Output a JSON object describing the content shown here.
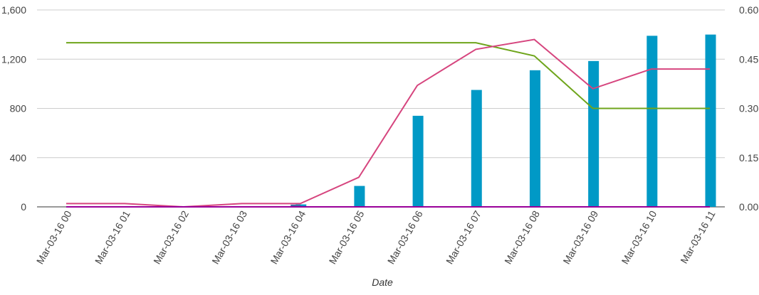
{
  "chart_data": {
    "type": "bar",
    "xlabel": "Date",
    "categories": [
      "Mar-03-16 00",
      "Mar-03-16 01",
      "Mar-03-16 02",
      "Mar-03-16 03",
      "Mar-03-16 04",
      "Mar-03-16 05",
      "Mar-03-16 06",
      "Mar-03-16 07",
      "Mar-03-16 08",
      "Mar-03-16 09",
      "Mar-03-16 10",
      "Mar-03-16 11"
    ],
    "y_left": {
      "ylim": [
        0,
        1600
      ],
      "ticks": [
        "0",
        "400",
        "800",
        "1,200",
        "1,600"
      ],
      "tick_values": [
        0,
        400,
        800,
        1200,
        1600
      ]
    },
    "y_right": {
      "ylim": [
        0,
        0.6
      ],
      "ticks": [
        "0.00",
        "0.15",
        "0.30",
        "0.45",
        "0.60"
      ],
      "tick_values": [
        0,
        0.15,
        0.3,
        0.45,
        0.6
      ]
    },
    "grid": true,
    "series": [
      {
        "type": "bar",
        "axis": "left",
        "color": "#0099c6",
        "values": [
          0,
          0,
          0,
          0,
          20,
          170,
          740,
          950,
          1110,
          1185,
          1390,
          1400
        ]
      },
      {
        "type": "bar",
        "axis": "left",
        "color": "#3b6ea5",
        "values": [
          0,
          0,
          0,
          0,
          18,
          0,
          0,
          0,
          0,
          0,
          0,
          0
        ]
      },
      {
        "type": "line",
        "axis": "right",
        "color": "#6fa51c",
        "values": [
          0.5,
          0.5,
          0.5,
          0.5,
          0.5,
          0.5,
          0.5,
          0.5,
          0.46,
          0.3,
          0.3,
          0.3
        ]
      },
      {
        "type": "line",
        "axis": "right",
        "color": "#d6457e",
        "values": [
          0.01,
          0.01,
          0.0,
          0.01,
          0.01,
          0.09,
          0.37,
          0.48,
          0.51,
          0.36,
          0.42,
          0.42
        ]
      },
      {
        "type": "line",
        "axis": "right",
        "color": "#990099",
        "values": [
          0,
          0,
          0,
          0,
          0,
          0,
          0,
          0,
          0,
          0,
          0,
          0
        ]
      }
    ]
  }
}
